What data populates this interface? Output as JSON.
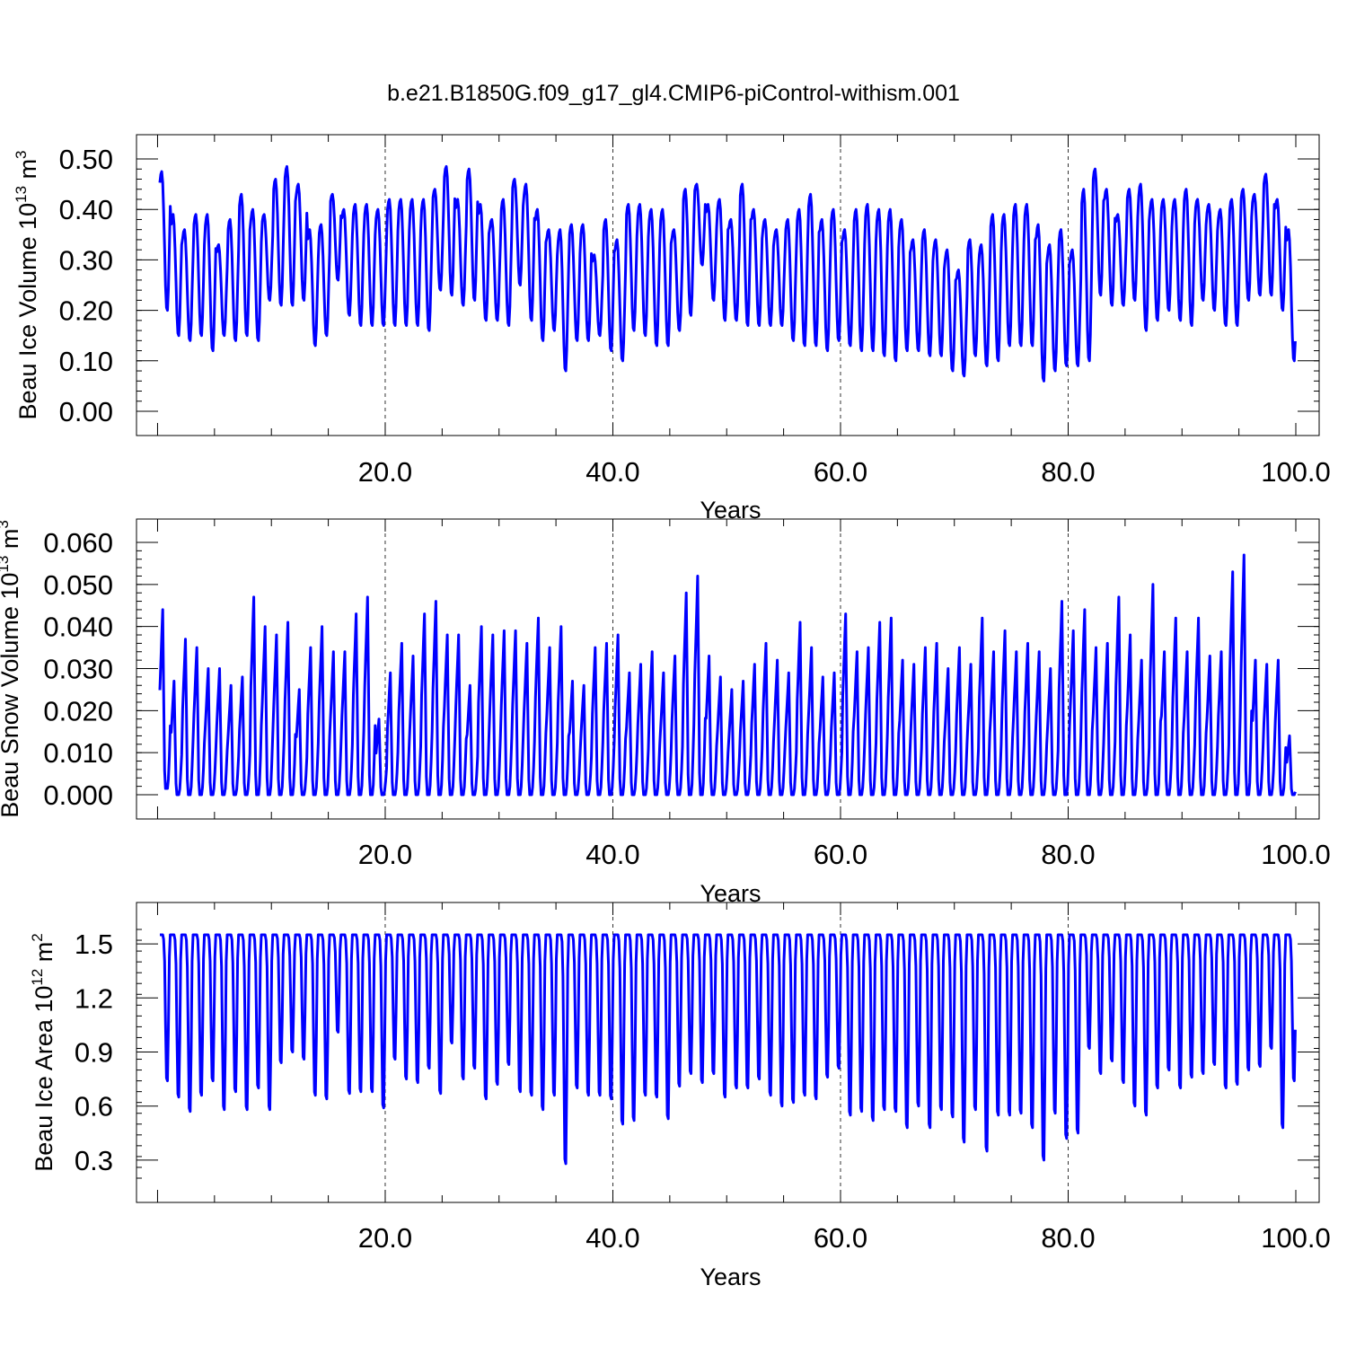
{
  "figure": {
    "title": "b.e21.B1850G.f09_g17_gl4.CMIP6-piControl-withism.001"
  },
  "chart_data": [
    {
      "type": "line",
      "ylabel": {
        "prefix": "Beau Ice Volume 10",
        "exponent": "13",
        "unit": "m",
        "unit_exponent": "3"
      },
      "xlabel": "Years",
      "xlim": [
        0.2,
        100.0
      ],
      "ylim": [
        0.0,
        0.5
      ],
      "x_ticks": [
        20,
        40,
        60,
        80,
        100
      ],
      "x_tick_labels": [
        "20.0",
        "40.0",
        "60.0",
        "80.0",
        "100.0"
      ],
      "y_ticks": [
        0.0,
        0.1,
        0.2,
        0.3,
        0.4,
        0.5
      ],
      "y_tick_labels": [
        "0.00",
        "0.10",
        "0.20",
        "0.30",
        "0.40",
        "0.50"
      ],
      "grid": "dashed vertical at major x ticks",
      "line_color": "#0000ff",
      "sampling": "monthly, ~100 years of seasonal cycles",
      "series": [
        {
          "annual_peaks": [
            0.475,
            0.39,
            0.36,
            0.39,
            0.39,
            0.33,
            0.38,
            0.43,
            0.4,
            0.39,
            0.46,
            0.485,
            0.45,
            0.36,
            0.37,
            0.43,
            0.4,
            0.41,
            0.41,
            0.4,
            0.42,
            0.42,
            0.42,
            0.42,
            0.44,
            0.485,
            0.42,
            0.48,
            0.41,
            0.38,
            0.42,
            0.46,
            0.45,
            0.4,
            0.36,
            0.36,
            0.37,
            0.37,
            0.31,
            0.38,
            0.34,
            0.41,
            0.41,
            0.4,
            0.4,
            0.36,
            0.44,
            0.45,
            0.41,
            0.42,
            0.38,
            0.45,
            0.4,
            0.38,
            0.36,
            0.38,
            0.4,
            0.43,
            0.38,
            0.4,
            0.36,
            0.4,
            0.41,
            0.4,
            0.4,
            0.38,
            0.34,
            0.36,
            0.34,
            0.32,
            0.28,
            0.34,
            0.33,
            0.39,
            0.39,
            0.41,
            0.41,
            0.37,
            0.33,
            0.36,
            0.32,
            0.44,
            0.48,
            0.44,
            0.39,
            0.44,
            0.45,
            0.42,
            0.42,
            0.42,
            0.44,
            0.42,
            0.41,
            0.4,
            0.42,
            0.44,
            0.43,
            0.47,
            0.42,
            0.36
          ],
          "annual_troughs": [
            0.2,
            0.15,
            0.14,
            0.15,
            0.12,
            0.15,
            0.14,
            0.15,
            0.14,
            0.22,
            0.21,
            0.21,
            0.22,
            0.13,
            0.15,
            0.26,
            0.19,
            0.17,
            0.17,
            0.17,
            0.17,
            0.17,
            0.17,
            0.16,
            0.24,
            0.23,
            0.21,
            0.22,
            0.18,
            0.18,
            0.17,
            0.25,
            0.18,
            0.14,
            0.16,
            0.08,
            0.14,
            0.14,
            0.15,
            0.12,
            0.1,
            0.16,
            0.15,
            0.13,
            0.13,
            0.16,
            0.19,
            0.29,
            0.22,
            0.18,
            0.18,
            0.17,
            0.17,
            0.17,
            0.17,
            0.14,
            0.13,
            0.13,
            0.12,
            0.14,
            0.13,
            0.12,
            0.12,
            0.11,
            0.1,
            0.12,
            0.12,
            0.11,
            0.11,
            0.08,
            0.07,
            0.11,
            0.09,
            0.1,
            0.13,
            0.13,
            0.13,
            0.06,
            0.08,
            0.09,
            0.09,
            0.1,
            0.23,
            0.21,
            0.21,
            0.22,
            0.16,
            0.18,
            0.2,
            0.18,
            0.17,
            0.22,
            0.2,
            0.17,
            0.17,
            0.22,
            0.23,
            0.23,
            0.2,
            0.1
          ]
        }
      ]
    },
    {
      "type": "line",
      "ylabel": {
        "prefix": "Beau Snow Volume 10",
        "exponent": "13",
        "unit": "m",
        "unit_exponent": "3"
      },
      "xlabel": "Years",
      "xlim": [
        0.2,
        100.0
      ],
      "ylim": [
        0.0,
        0.06
      ],
      "x_ticks": [
        20,
        40,
        60,
        80,
        100
      ],
      "x_tick_labels": [
        "20.0",
        "40.0",
        "60.0",
        "80.0",
        "100.0"
      ],
      "y_ticks": [
        0.0,
        0.01,
        0.02,
        0.03,
        0.04,
        0.05,
        0.06
      ],
      "y_tick_labels": [
        "0.000",
        "0.010",
        "0.020",
        "0.030",
        "0.040",
        "0.050",
        "0.060"
      ],
      "grid": "dashed vertical at major x ticks",
      "line_color": "#0000ff",
      "sampling": "monthly, ~100 years of seasonal cycles",
      "series": [
        {
          "annual_peaks": [
            0.044,
            0.027,
            0.037,
            0.035,
            0.03,
            0.03,
            0.026,
            0.028,
            0.047,
            0.04,
            0.038,
            0.041,
            0.025,
            0.035,
            0.04,
            0.034,
            0.034,
            0.043,
            0.047,
            0.018,
            0.029,
            0.036,
            0.033,
            0.043,
            0.046,
            0.038,
            0.038,
            0.026,
            0.04,
            0.038,
            0.039,
            0.039,
            0.036,
            0.042,
            0.035,
            0.04,
            0.027,
            0.026,
            0.035,
            0.036,
            0.038,
            0.029,
            0.031,
            0.034,
            0.029,
            0.033,
            0.048,
            0.052,
            0.033,
            0.028,
            0.025,
            0.027,
            0.031,
            0.036,
            0.032,
            0.029,
            0.041,
            0.035,
            0.028,
            0.029,
            0.043,
            0.034,
            0.035,
            0.041,
            0.042,
            0.032,
            0.031,
            0.035,
            0.036,
            0.03,
            0.035,
            0.031,
            0.042,
            0.034,
            0.039,
            0.034,
            0.036,
            0.034,
            0.03,
            0.046,
            0.039,
            0.044,
            0.035,
            0.036,
            0.047,
            0.038,
            0.032,
            0.05,
            0.034,
            0.042,
            0.034,
            0.042,
            0.033,
            0.034,
            0.053,
            0.057,
            0.032,
            0.031,
            0.032,
            0.014
          ],
          "annual_troughs": [
            0.0015,
            0.0,
            0.0,
            0.0,
            0.0,
            0.0,
            0.0,
            0.0,
            0.0,
            0.0,
            0.0,
            0.0,
            0.0,
            0.0,
            0.0,
            0.0,
            0.0,
            0.0,
            0.0,
            0.0,
            0.0,
            0.0,
            0.0,
            0.0,
            0.0,
            0.0,
            0.0,
            0.0,
            0.0,
            0.0,
            0.0,
            0.0,
            0.0,
            0.0,
            0.0,
            0.0,
            0.0,
            0.0,
            0.0,
            0.0,
            0.0,
            0.0,
            0.0,
            0.0,
            0.0,
            0.0,
            0.0,
            0.0,
            0.0,
            0.0,
            0.0,
            0.0,
            0.0,
            0.0,
            0.0,
            0.0,
            0.0,
            0.0,
            0.0,
            0.0,
            0.0,
            0.0,
            0.0,
            0.0,
            0.0,
            0.0,
            0.0,
            0.0,
            0.0,
            0.0,
            0.0,
            0.0,
            0.0,
            0.0,
            0.0,
            0.0,
            0.0,
            0.0,
            0.0,
            0.0,
            0.0,
            0.0,
            0.0,
            0.0,
            0.0,
            0.0,
            0.0,
            0.0,
            0.0,
            0.0,
            0.0,
            0.0,
            0.0,
            0.0,
            0.0,
            0.0,
            0.0,
            0.0,
            0.0,
            0.0
          ]
        }
      ]
    },
    {
      "type": "line",
      "ylabel": {
        "prefix": "Beau Ice Area 10",
        "exponent": "12",
        "unit": "m",
        "unit_exponent": "2"
      },
      "xlabel": "Years",
      "xlim": [
        0.2,
        100.0
      ],
      "ylim": [
        0.2,
        1.6
      ],
      "x_ticks": [
        20,
        40,
        60,
        80,
        100
      ],
      "x_tick_labels": [
        "20.0",
        "40.0",
        "60.0",
        "80.0",
        "100.0"
      ],
      "y_ticks": [
        0.3,
        0.6,
        0.9,
        1.2,
        1.5
      ],
      "y_tick_labels": [
        "0.3",
        "0.6",
        "0.9",
        "1.2",
        "1.5"
      ],
      "grid": "dashed vertical at major x ticks",
      "line_color": "#0000ff",
      "sampling": "monthly, ~100 years of seasonal cycles",
      "series": [
        {
          "annual_peaks": [
            1.55,
            1.55,
            1.55,
            1.55,
            1.55,
            1.55,
            1.55,
            1.55,
            1.55,
            1.55,
            1.55,
            1.55,
            1.55,
            1.55,
            1.55,
            1.55,
            1.55,
            1.55,
            1.55,
            1.55,
            1.55,
            1.55,
            1.55,
            1.55,
            1.55,
            1.55,
            1.55,
            1.55,
            1.55,
            1.55,
            1.55,
            1.55,
            1.55,
            1.55,
            1.55,
            1.55,
            1.55,
            1.55,
            1.55,
            1.55,
            1.55,
            1.55,
            1.55,
            1.55,
            1.55,
            1.55,
            1.55,
            1.55,
            1.55,
            1.55,
            1.55,
            1.55,
            1.55,
            1.55,
            1.55,
            1.55,
            1.55,
            1.55,
            1.55,
            1.55,
            1.55,
            1.55,
            1.55,
            1.55,
            1.55,
            1.55,
            1.55,
            1.55,
            1.55,
            1.55,
            1.55,
            1.55,
            1.55,
            1.55,
            1.55,
            1.55,
            1.55,
            1.55,
            1.55,
            1.55,
            1.55,
            1.55,
            1.55,
            1.55,
            1.55,
            1.55,
            1.55,
            1.55,
            1.55,
            1.55,
            1.55,
            1.55,
            1.55,
            1.55,
            1.55,
            1.55,
            1.55,
            1.55,
            1.55,
            1.55
          ],
          "annual_troughs": [
            0.74,
            0.65,
            0.57,
            0.66,
            0.74,
            0.58,
            0.68,
            0.58,
            0.7,
            0.58,
            0.84,
            0.9,
            0.86,
            0.66,
            0.64,
            1.01,
            0.67,
            0.68,
            0.68,
            0.59,
            0.86,
            0.75,
            0.73,
            0.81,
            0.67,
            0.95,
            0.75,
            0.81,
            0.64,
            0.72,
            0.83,
            0.68,
            0.66,
            0.58,
            0.66,
            0.28,
            0.7,
            0.66,
            0.66,
            0.64,
            0.5,
            0.52,
            0.66,
            0.65,
            0.53,
            0.71,
            0.78,
            0.73,
            0.78,
            0.65,
            0.7,
            0.7,
            0.75,
            0.66,
            0.6,
            0.62,
            0.66,
            0.64,
            0.76,
            0.81,
            0.55,
            0.57,
            0.52,
            0.58,
            0.57,
            0.48,
            0.6,
            0.48,
            0.58,
            0.54,
            0.4,
            0.58,
            0.35,
            0.55,
            0.55,
            0.56,
            0.48,
            0.3,
            0.56,
            0.42,
            0.45,
            0.92,
            0.78,
            0.85,
            0.73,
            0.6,
            0.55,
            0.7,
            0.8,
            0.7,
            0.76,
            0.78,
            0.83,
            0.7,
            0.72,
            0.8,
            0.82,
            0.92,
            0.48,
            0.74
          ]
        }
      ]
    }
  ]
}
